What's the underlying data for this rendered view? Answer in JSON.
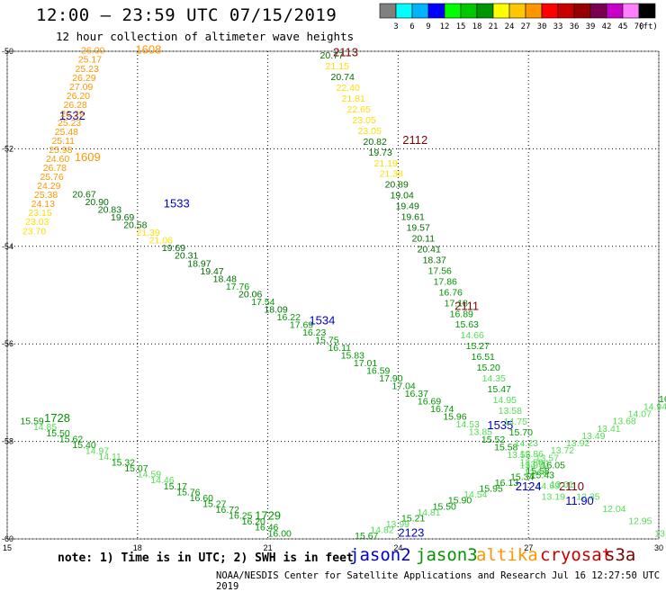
{
  "header": {
    "title": "12:00 – 23:59 UTC 07/15/2019",
    "subtitle": "12 hour collection of altimeter wave heights"
  },
  "color_scale": {
    "colors": [
      "#808080",
      "#00ffff",
      "#00b4ff",
      "#0000ff",
      "#00ff00",
      "#00c800",
      "#009600",
      "#ffff00",
      "#ffc800",
      "#ff9600",
      "#ff0000",
      "#c80000",
      "#960000",
      "#780050",
      "#c800c8",
      "#ff80ff",
      "#000000"
    ],
    "labels": [
      "3",
      "6",
      "9",
      "12",
      "15",
      "18",
      "21",
      "24",
      "27",
      "30",
      "33",
      "36",
      "39",
      "42",
      "45",
      "70",
      "(ft)"
    ]
  },
  "legend": {
    "note": "note: 1) Time is in UTC; 2) SWH is in feet",
    "credit": "NOAA/NESDIS Center for Satellite Applications and Research   Jul 16 12:27:50 UTC 2019",
    "satellites": [
      {
        "name": "jason2",
        "color": "#0000cc"
      },
      {
        "name": "jason3",
        "color": "#009600"
      },
      {
        "name": "altika",
        "color": "#ff9600"
      },
      {
        "name": "cryosat",
        "color": "#c80000"
      },
      {
        "name": "s3a",
        "color": "#800000"
      }
    ]
  },
  "chart_data": {
    "type": "scatter",
    "title": "12:00 – 23:59 UTC 07/15/2019",
    "subtitle": "12 hour collection of altimeter wave heights",
    "xlabel": "",
    "ylabel": "",
    "xlim": [
      15,
      30
    ],
    "ylim": [
      -60,
      -50
    ],
    "x_ticks": [
      15,
      18,
      21,
      24,
      27,
      30
    ],
    "y_ticks": [
      -50,
      -52,
      -54,
      -56,
      -58,
      -60
    ],
    "grid": true,
    "units": "ft",
    "tracks": [
      {
        "name": "jason2 1532 / 1533 / 1534 / 1535",
        "color": "#009600",
        "labels": [
          {
            "text": "1532",
            "x": 16.2,
            "y": -51.4,
            "color": "#0000cc"
          },
          {
            "text": "1533",
            "x": 18.6,
            "y": -53.2,
            "color": "#0000cc"
          },
          {
            "text": "1534",
            "x": 21.95,
            "y": -55.6,
            "color": "#0000cc"
          },
          {
            "text": "1535",
            "x": 26.05,
            "y": -57.75,
            "color": "#0000cc"
          }
        ],
        "start": [
          16.5,
          -53.0
        ],
        "end": [
          26.8,
          -58.5
        ],
        "values": [
          "20.67",
          "20.90",
          "20.83",
          "19.69",
          "20.58",
          "21.39",
          "21.06",
          "19.69",
          "20.31",
          "18.97",
          "19.47",
          "18.48",
          "17.76",
          "20.06",
          "17.54",
          "18.09",
          "16.22",
          "17.69",
          "16.23",
          "15.75",
          "16.11",
          "15.83",
          "17.01",
          "16.59",
          "17.90",
          "17.04",
          "16.37",
          "16.69",
          "16.74",
          "15.96",
          "14.53",
          "13.85",
          "15.52",
          "15.58",
          "13.55",
          "13.50"
        ]
      },
      {
        "name": "altika 1608 / 1609",
        "color": "#ff9600",
        "labels": [
          {
            "text": "1608",
            "x": 17.95,
            "y": -50.05,
            "color": "#ff9600"
          },
          {
            "text": "1609",
            "x": 16.55,
            "y": -52.25,
            "color": "#ff9600"
          }
        ],
        "start": [
          16.7,
          -50.05
        ],
        "end": [
          15.35,
          -53.75
        ],
        "values": [
          "26.00",
          "25.17",
          "25.23",
          "26.29",
          "27.09",
          "26.20",
          "26.28",
          "26.29",
          "25.23",
          "25.48",
          "25.11",
          "25.98",
          "24.60",
          "26.78",
          "25.76",
          "24.29",
          "25.38",
          "24.13",
          "23.15",
          "23.03",
          "23.70"
        ]
      },
      {
        "name": "cryosat 2113 / 2112 / 2111 / 2110",
        "color": "#009600",
        "labels": [
          {
            "text": "2113",
            "x": 22.5,
            "y": -50.1,
            "color": "#800000"
          },
          {
            "text": "2112",
            "x": 24.1,
            "y": -51.9,
            "color": "#800000"
          },
          {
            "text": "2111",
            "x": 25.3,
            "y": -55.3,
            "color": "#800000"
          },
          {
            "text": "2110",
            "x": 27.7,
            "y": -59.0,
            "color": "#800000"
          }
        ],
        "start": [
          22.2,
          -50.15
        ],
        "end": [
          27.3,
          -59.2
        ],
        "values": [
          "20.77",
          "21.15",
          "20.74",
          "22.40",
          "21.81",
          "22.65",
          "23.05",
          "23.05",
          "20.82",
          "19.73",
          "21.19",
          "21.38",
          "20.89",
          "19.04",
          "19.49",
          "19.61",
          "19.57",
          "20.11",
          "20.41",
          "18.37",
          "17.56",
          "17.86",
          "16.76",
          "17.18",
          "16.89",
          "15.63",
          "14.66",
          "15.27",
          "16.51",
          "15.20",
          "14.35",
          "15.47",
          "14.95",
          "13.58",
          "14.75",
          "15.70",
          "14.23",
          "12.86",
          "13.57",
          "15.43",
          "14.69",
          "13.19"
        ]
      },
      {
        "name": "jason3 1728 / 1729",
        "color": "#009600",
        "labels": [
          {
            "text": "1728",
            "x": 15.85,
            "y": -57.6,
            "color": "#009600"
          },
          {
            "text": "1729",
            "x": 20.7,
            "y": -59.6,
            "color": "#009600"
          }
        ],
        "start": [
          15.3,
          -57.65
        ],
        "end": [
          21.0,
          -59.95
        ],
        "values": [
          "15.59",
          "14.85",
          "15.50",
          "15.62",
          "15.40",
          "14.97",
          "14.11",
          "15.32",
          "15.07",
          "14.59",
          "14.46",
          "15.17",
          "15.76",
          "16.60",
          "15.27",
          "16.72",
          "16.25",
          "16.20",
          "16.46",
          "16.00"
        ]
      },
      {
        "name": "jason2 2123 / 2124 ascending",
        "color": "#00c800",
        "labels": [
          {
            "text": "2123",
            "x": 24.0,
            "y": -59.95,
            "color": "#0000cc"
          },
          {
            "text": "2124",
            "x": 26.7,
            "y": -59.0,
            "color": "#0000cc"
          }
        ],
        "start": [
          23.0,
          -60.0
        ],
        "end": [
          27.3,
          -58.55
        ],
        "values": [
          "15.67",
          "14.82",
          "13.99",
          "15.21",
          "14.81",
          "15.50",
          "15.90",
          "14.54",
          "15.95",
          "16.13",
          "15.34",
          "15.58",
          "16.05"
        ]
      },
      {
        "name": "cryosat ascending 2110",
        "color": "#00c800",
        "labels": [
          {
            "text": "11.90",
            "x": 27.85,
            "y": -59.3,
            "color": "#0000cc"
          }
        ],
        "start": [
          26.9,
          -58.7
        ],
        "end": [
          29.9,
          -59.95
        ],
        "values": [
          "12.08",
          "13.01",
          "12.35",
          "12.04",
          "12.95",
          "13.18"
        ]
      },
      {
        "name": "s3a ascending",
        "color": "#00c800",
        "labels": [],
        "start": [
          26.8,
          -58.55
        ],
        "end": [
          30.0,
          -57.2
        ],
        "values": [
          "13.07",
          "13.57",
          "13.72",
          "13.92",
          "13.49",
          "13.41",
          "13.68",
          "14.07",
          "14.94",
          "16.79"
        ]
      }
    ]
  }
}
